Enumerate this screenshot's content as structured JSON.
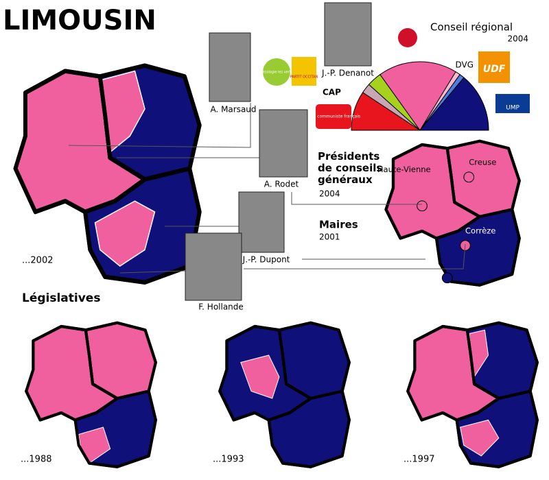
{
  "header": {
    "title": "LIMOUSIN"
  },
  "regional_council": {
    "title": "Conseil régional",
    "year": "2004",
    "hemicycle": {
      "values": [
        8,
        2,
        3,
        16,
        1,
        1,
        12
      ],
      "colors": [
        "#e8141e",
        "#c8a6b4",
        "#a6d21e",
        "#f0609e",
        "#f8b8d0",
        "#4a7ee0",
        "#10107a"
      ]
    },
    "logos": {
      "verts": "l'écologie les verts",
      "occitan": "PARTIT OCCITAN",
      "cap": "CAP",
      "pcf": "Parti communiste français",
      "dvg": "DVG",
      "udf": "UDF",
      "ump": "UMP"
    }
  },
  "people": [
    {
      "name": "A. Marsaud"
    },
    {
      "name": "J.-P. Denanot"
    },
    {
      "name": "A. Rodet"
    },
    {
      "name": "J.-P. Dupont"
    },
    {
      "name": "F. Hollande"
    }
  ],
  "presidents": {
    "title": "Présidents de conseils généraux",
    "year": "2004"
  },
  "mayors": {
    "title": "Maires",
    "year": "2001"
  },
  "departments": [
    "Haute-Vienne",
    "Creuse",
    "Corrèze"
  ],
  "main_map": {
    "label": "...2002"
  },
  "legislatives": {
    "title": "Législatives",
    "maps": [
      {
        "label": "...1988"
      },
      {
        "label": "...1993"
      },
      {
        "label": "...1997"
      }
    ]
  }
}
